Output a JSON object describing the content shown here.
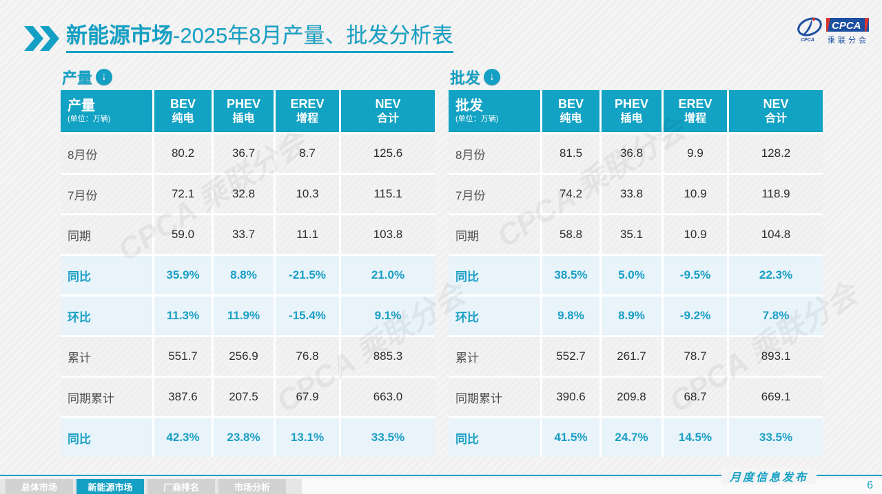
{
  "page": {
    "title_bold": "新能源市场",
    "title_rest": "-2025年8月产量、批发分析表",
    "footer_note": "月度信息发布",
    "page_number": "6",
    "watermark": "CPCA 乘联分会"
  },
  "logo": {
    "acronym": "CPCA",
    "swirl_caption": "CPCA",
    "cn": "乘联分会"
  },
  "colors": {
    "accent_teal": "#11A2C4",
    "percent_row_bg": "#E8F3FA",
    "percent_text": "#1A9FC4",
    "tab_inactive": "#D2D2D2",
    "logo_blue": "#1C4FA0",
    "logo_red": "#D5342C"
  },
  "tabs": [
    {
      "label": "总体市场",
      "active": false
    },
    {
      "label": "新能源市场",
      "active": true
    },
    {
      "label": "厂商排名",
      "active": false
    },
    {
      "label": "市场分析",
      "active": false
    }
  ],
  "tables": [
    {
      "title": "产量",
      "unit": "(单位：万辆)",
      "columns": [
        {
          "en": "BEV",
          "cn": "纯电"
        },
        {
          "en": "PHEV",
          "cn": "插电"
        },
        {
          "en": "EREV",
          "cn": "增程"
        },
        {
          "en": "NEV",
          "cn": "合计"
        }
      ],
      "rows": [
        {
          "label": "8月份",
          "type": "data",
          "values": [
            "80.2",
            "36.7",
            "8.7",
            "125.6"
          ]
        },
        {
          "label": "7月份",
          "type": "data",
          "values": [
            "72.1",
            "32.8",
            "10.3",
            "115.1"
          ]
        },
        {
          "label": "同期",
          "type": "data",
          "values": [
            "59.0",
            "33.7",
            "11.1",
            "103.8"
          ]
        },
        {
          "label": "同比",
          "type": "percent",
          "values": [
            "35.9%",
            "8.8%",
            "-21.5%",
            "21.0%"
          ]
        },
        {
          "label": "环比",
          "type": "percent",
          "values": [
            "11.3%",
            "11.9%",
            "-15.4%",
            "9.1%"
          ]
        },
        {
          "label": "累计",
          "type": "data",
          "values": [
            "551.7",
            "256.9",
            "76.8",
            "885.3"
          ]
        },
        {
          "label": "同期累计",
          "type": "data",
          "values": [
            "387.6",
            "207.5",
            "67.9",
            "663.0"
          ]
        },
        {
          "label": "同比",
          "type": "percent",
          "values": [
            "42.3%",
            "23.8%",
            "13.1%",
            "33.5%"
          ]
        }
      ]
    },
    {
      "title": "批发",
      "unit": "(单位：万辆)",
      "columns": [
        {
          "en": "BEV",
          "cn": "纯电"
        },
        {
          "en": "PHEV",
          "cn": "插电"
        },
        {
          "en": "EREV",
          "cn": "增程"
        },
        {
          "en": "NEV",
          "cn": "合计"
        }
      ],
      "rows": [
        {
          "label": "8月份",
          "type": "data",
          "values": [
            "81.5",
            "36.8",
            "9.9",
            "128.2"
          ]
        },
        {
          "label": "7月份",
          "type": "data",
          "values": [
            "74.2",
            "33.8",
            "10.9",
            "118.9"
          ]
        },
        {
          "label": "同期",
          "type": "data",
          "values": [
            "58.8",
            "35.1",
            "10.9",
            "104.8"
          ]
        },
        {
          "label": "同比",
          "type": "percent",
          "values": [
            "38.5%",
            "5.0%",
            "-9.5%",
            "22.3%"
          ]
        },
        {
          "label": "环比",
          "type": "percent",
          "values": [
            "9.8%",
            "8.9%",
            "-9.2%",
            "7.8%"
          ]
        },
        {
          "label": "累计",
          "type": "data",
          "values": [
            "552.7",
            "261.7",
            "78.7",
            "893.1"
          ]
        },
        {
          "label": "同期累计",
          "type": "data",
          "values": [
            "390.6",
            "209.8",
            "68.7",
            "669.1"
          ]
        },
        {
          "label": "同比",
          "type": "percent",
          "values": [
            "41.5%",
            "24.7%",
            "14.5%",
            "33.5%"
          ]
        }
      ]
    }
  ]
}
